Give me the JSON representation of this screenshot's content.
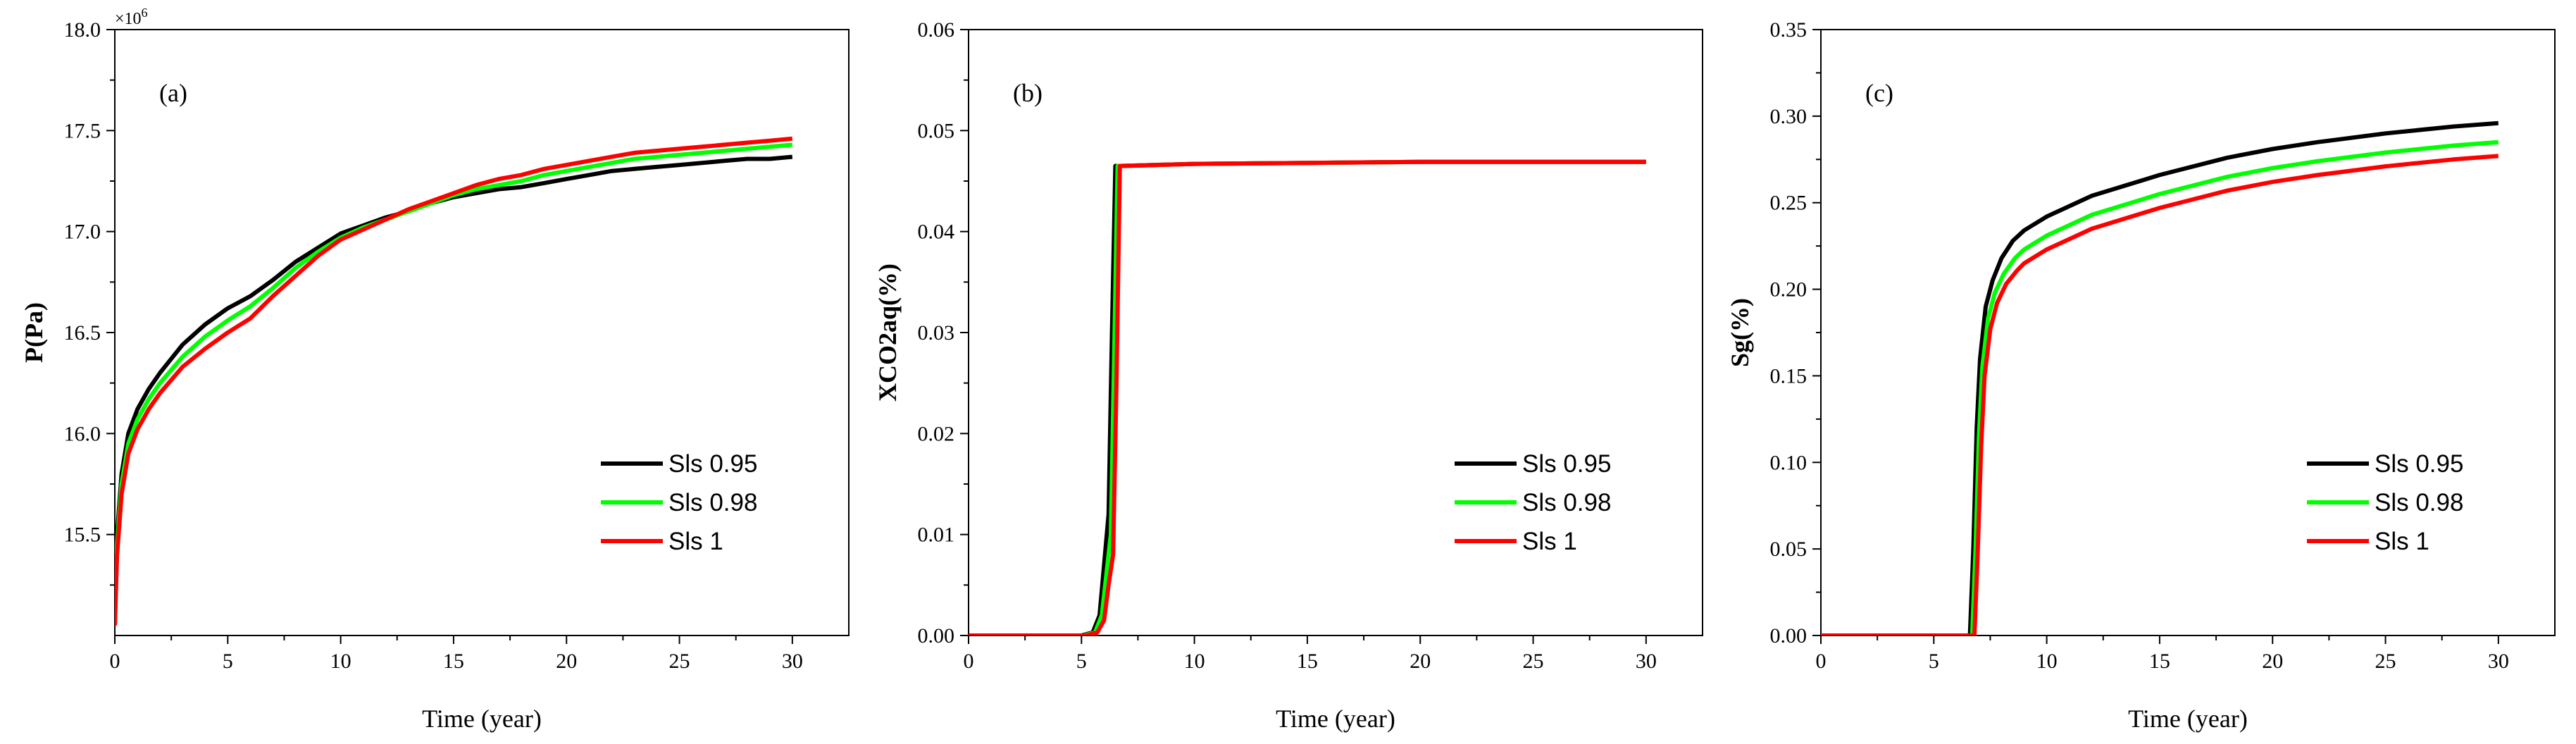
{
  "chart_data": [
    {
      "type": "line",
      "panel_label": "(a)",
      "xlabel": "Time (year)",
      "ylabel": "P(Pa)",
      "y_multiplier_label": "×10",
      "y_multiplier_exp": "6",
      "xlim": [
        0,
        32.5
      ],
      "ylim": [
        15.0,
        18.0
      ],
      "xticks": [
        0,
        5,
        10,
        15,
        20,
        25,
        30
      ],
      "yticks": [
        15.5,
        16.0,
        16.5,
        17.0,
        17.5,
        18.0
      ],
      "xtick_labels": [
        "0",
        "5",
        "10",
        "15",
        "20",
        "25",
        "30"
      ],
      "ytick_labels": [
        "15.5",
        "16.0",
        "16.5",
        "17.0",
        "17.5",
        "18.0"
      ],
      "legend_position": "lower-right",
      "grid": false,
      "series": [
        {
          "name": "Sls 0.95",
          "color": "#000000",
          "x": [
            0,
            0.1,
            0.3,
            0.6,
            1,
            1.5,
            2,
            3,
            4,
            5,
            6,
            7,
            8,
            9,
            10,
            11,
            12,
            13,
            14,
            15,
            16,
            17,
            18,
            19,
            20,
            21,
            22,
            23,
            24,
            25,
            26,
            27,
            28,
            29,
            30
          ],
          "y": [
            15.05,
            15.5,
            15.8,
            16.0,
            16.12,
            16.22,
            16.3,
            16.44,
            16.54,
            16.62,
            16.68,
            16.76,
            16.85,
            16.92,
            16.99,
            17.03,
            17.07,
            17.1,
            17.14,
            17.17,
            17.19,
            17.21,
            17.22,
            17.24,
            17.26,
            17.28,
            17.3,
            17.31,
            17.32,
            17.33,
            17.34,
            17.35,
            17.36,
            17.36,
            17.37
          ]
        },
        {
          "name": "Sls 0.98",
          "color": "#00ff00",
          "x": [
            0,
            0.1,
            0.3,
            0.6,
            1,
            1.5,
            2,
            3,
            4,
            5,
            6,
            7,
            8,
            9,
            10,
            11,
            12,
            13,
            14,
            15,
            16,
            17,
            18,
            19,
            20,
            21,
            22,
            23,
            24,
            25,
            26,
            27,
            28,
            29,
            30
          ],
          "y": [
            15.05,
            15.45,
            15.75,
            15.95,
            16.07,
            16.17,
            16.25,
            16.38,
            16.48,
            16.56,
            16.63,
            16.72,
            16.82,
            16.9,
            16.97,
            17.02,
            17.06,
            17.1,
            17.14,
            17.18,
            17.21,
            17.23,
            17.25,
            17.28,
            17.3,
            17.32,
            17.34,
            17.36,
            17.37,
            17.38,
            17.39,
            17.4,
            17.41,
            17.42,
            17.43
          ]
        },
        {
          "name": "Sls 1",
          "color": "#ff0000",
          "x": [
            0,
            0.1,
            0.3,
            0.6,
            1,
            1.5,
            2,
            3,
            4,
            5,
            6,
            7,
            8,
            9,
            10,
            11,
            12,
            13,
            14,
            15,
            16,
            17,
            18,
            19,
            20,
            21,
            22,
            23,
            24,
            25,
            26,
            27,
            28,
            29,
            30
          ],
          "y": [
            15.05,
            15.4,
            15.7,
            15.9,
            16.02,
            16.12,
            16.2,
            16.33,
            16.42,
            16.5,
            16.57,
            16.68,
            16.78,
            16.88,
            16.96,
            17.01,
            17.06,
            17.11,
            17.15,
            17.19,
            17.23,
            17.26,
            17.28,
            17.31,
            17.33,
            17.35,
            17.37,
            17.39,
            17.4,
            17.41,
            17.42,
            17.43,
            17.44,
            17.45,
            17.46
          ]
        }
      ]
    },
    {
      "type": "line",
      "panel_label": "(b)",
      "xlabel": "Time (year)",
      "ylabel": "XCO2aq(%)",
      "xlim": [
        0,
        32.5
      ],
      "ylim": [
        0,
        0.06
      ],
      "xticks": [
        0,
        5,
        10,
        15,
        20,
        25,
        30
      ],
      "yticks": [
        0,
        0.01,
        0.02,
        0.03,
        0.04,
        0.05,
        0.06
      ],
      "xtick_labels": [
        "0",
        "5",
        "10",
        "15",
        "20",
        "25",
        "30"
      ],
      "ytick_labels": [
        "0.00",
        "0.01",
        "0.02",
        "0.03",
        "0.04",
        "0.05",
        "0.06"
      ],
      "legend_position": "lower-right",
      "grid": false,
      "series": [
        {
          "name": "Sls 0.95",
          "color": "#000000",
          "x": [
            0,
            5.0,
            5.5,
            5.8,
            6.0,
            6.2,
            6.35,
            6.5,
            6.7,
            10,
            15,
            20,
            25,
            30
          ],
          "y": [
            0,
            0,
            0.0003,
            0.002,
            0.007,
            0.012,
            0.03,
            0.0465,
            0.0465,
            0.0467,
            0.0468,
            0.0469,
            0.0469,
            0.0469
          ]
        },
        {
          "name": "Sls 0.98",
          "color": "#00ff00",
          "x": [
            0,
            5.1,
            5.6,
            5.9,
            6.1,
            6.3,
            6.45,
            6.6,
            6.8,
            10,
            15,
            20,
            25,
            30
          ],
          "y": [
            0,
            0,
            0.0003,
            0.002,
            0.006,
            0.01,
            0.028,
            0.0465,
            0.0465,
            0.0467,
            0.0468,
            0.0469,
            0.0469,
            0.0469
          ]
        },
        {
          "name": "Sls 1",
          "color": "#ff0000",
          "x": [
            0,
            5.2,
            5.7,
            6.0,
            6.2,
            6.4,
            6.55,
            6.7,
            6.9,
            10,
            15,
            20,
            25,
            30
          ],
          "y": [
            0,
            0,
            0.0003,
            0.0015,
            0.005,
            0.008,
            0.025,
            0.0465,
            0.0465,
            0.0467,
            0.0468,
            0.0469,
            0.0469,
            0.0469
          ]
        }
      ]
    },
    {
      "type": "line",
      "panel_label": "(c)",
      "xlabel": "Time (year)",
      "ylabel": "Sg(%)",
      "xlim": [
        0,
        32.5
      ],
      "ylim": [
        0,
        0.35
      ],
      "xticks": [
        0,
        5,
        10,
        15,
        20,
        25,
        30
      ],
      "yticks": [
        0,
        0.05,
        0.1,
        0.15,
        0.2,
        0.25,
        0.3,
        0.35
      ],
      "xtick_labels": [
        "0",
        "5",
        "10",
        "15",
        "20",
        "25",
        "30"
      ],
      "ytick_labels": [
        "0.00",
        "0.05",
        "0.10",
        "0.15",
        "0.20",
        "0.25",
        "0.30",
        "0.35"
      ],
      "legend_position": "lower-right",
      "grid": false,
      "series": [
        {
          "name": "Sls 0.95",
          "color": "#000000",
          "x": [
            0,
            6.6,
            6.75,
            6.9,
            7.05,
            7.3,
            7.6,
            8.0,
            8.5,
            9,
            10,
            12,
            15,
            18,
            20,
            22,
            25,
            28,
            30
          ],
          "y": [
            0,
            0,
            0.05,
            0.12,
            0.16,
            0.19,
            0.205,
            0.218,
            0.228,
            0.234,
            0.242,
            0.254,
            0.266,
            0.276,
            0.281,
            0.285,
            0.29,
            0.294,
            0.296
          ]
        },
        {
          "name": "Sls 0.98",
          "color": "#00ff00",
          "x": [
            0,
            6.7,
            6.85,
            7.0,
            7.15,
            7.4,
            7.7,
            8.1,
            8.6,
            9,
            10,
            12,
            15,
            18,
            20,
            22,
            25,
            28,
            30
          ],
          "y": [
            0,
            0,
            0.05,
            0.115,
            0.155,
            0.183,
            0.198,
            0.209,
            0.218,
            0.223,
            0.231,
            0.243,
            0.255,
            0.265,
            0.27,
            0.274,
            0.279,
            0.283,
            0.285
          ]
        },
        {
          "name": "Sls 1",
          "color": "#ff0000",
          "x": [
            0,
            6.8,
            6.95,
            7.1,
            7.25,
            7.5,
            7.8,
            8.2,
            8.7,
            9,
            10,
            12,
            15,
            18,
            20,
            22,
            25,
            28,
            30
          ],
          "y": [
            0,
            0,
            0.05,
            0.11,
            0.15,
            0.177,
            0.192,
            0.203,
            0.211,
            0.215,
            0.223,
            0.235,
            0.247,
            0.257,
            0.262,
            0.266,
            0.271,
            0.275,
            0.277
          ]
        }
      ]
    }
  ]
}
